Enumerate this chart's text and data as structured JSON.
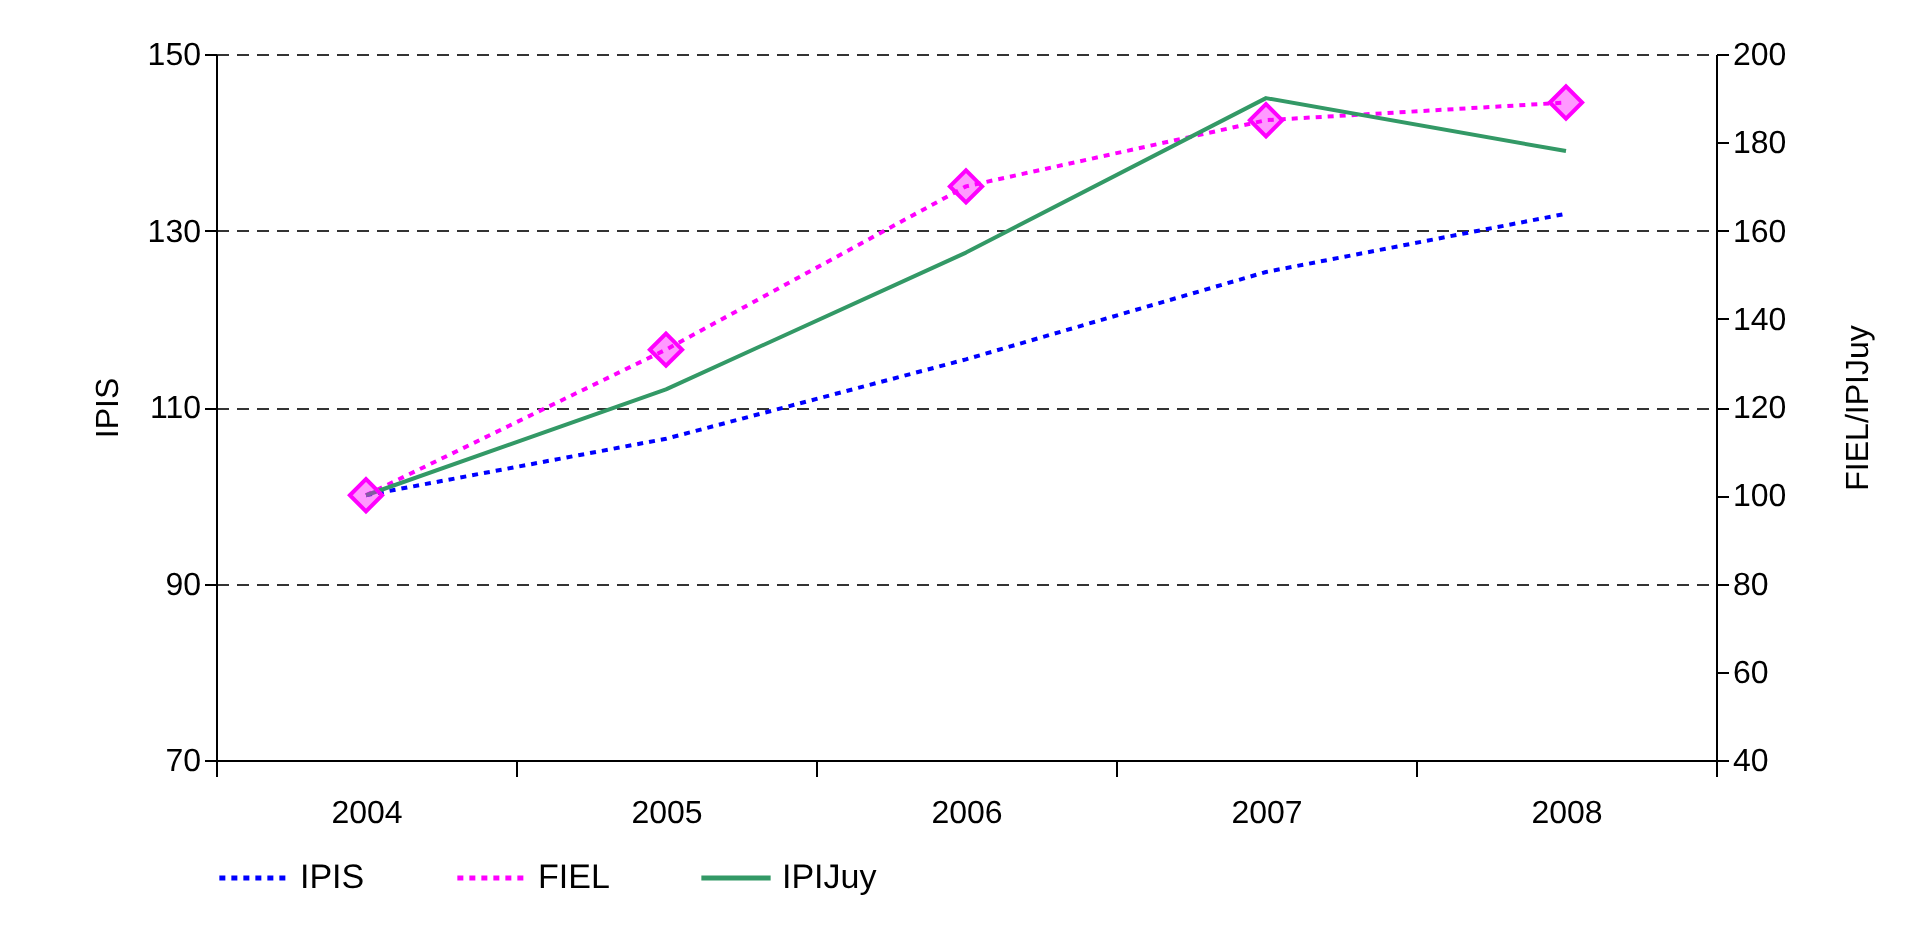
{
  "chart_data": {
    "type": "line",
    "categories": [
      "2004",
      "2005",
      "2006",
      "2007",
      "2008"
    ],
    "series": [
      {
        "name": "IPIS",
        "color": "#0000ff",
        "line_style": "dotted",
        "marker": "none",
        "values": [
          100,
          106.4,
          115.4,
          125.3,
          131.9
        ]
      },
      {
        "name": "FIEL",
        "color": "#ff00ff",
        "line_style": "dotted",
        "marker": "diamond",
        "axis": "y2",
        "values": [
          100,
          133,
          170,
          185,
          189
        ]
      },
      {
        "name": "IPIJuy",
        "color": "#339966",
        "line_style": "solid",
        "marker": "none",
        "axis": "y2",
        "values": [
          100,
          124,
          155,
          190,
          178
        ]
      }
    ],
    "ylabel": "IPIS",
    "y2label": "FIEL/IPIJuy",
    "ylim": [
      70,
      150
    ],
    "yticks": [
      70,
      90,
      110,
      130,
      150
    ],
    "y2lim": [
      40,
      200
    ],
    "y2ticks": [
      40,
      60,
      80,
      100,
      120,
      140,
      160,
      180,
      200
    ],
    "grid": "y",
    "legend": "bottom"
  }
}
